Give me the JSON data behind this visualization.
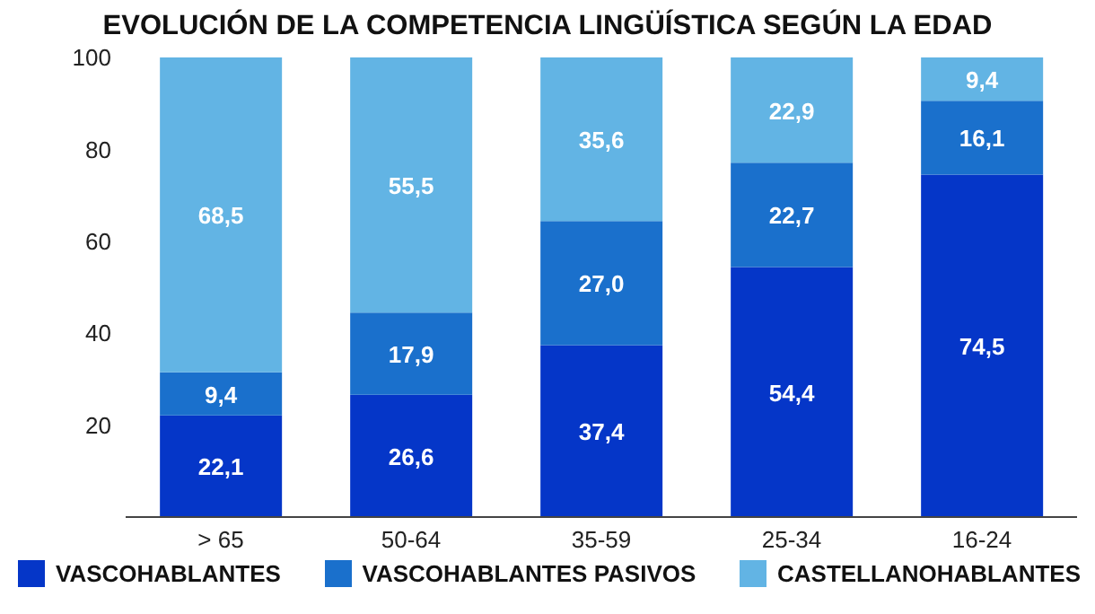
{
  "chart_data": {
    "type": "bar",
    "title": "EVOLUCIÓN DE LA COMPETENCIA LINGÜÍSTICA SEGÚN LA EDAD",
    "stacked": true,
    "categories": [
      "> 65",
      "50-64",
      "35-59",
      "25-34",
      "16-24"
    ],
    "series": [
      {
        "name": "VASCOHABLANTES",
        "color": "#0536c8",
        "values": [
          22.1,
          26.6,
          37.4,
          54.4,
          74.5
        ],
        "value_labels": [
          "22,1",
          "26,6",
          "37,4",
          "54,4",
          "74,5"
        ]
      },
      {
        "name": "VASCOHABLANTES PASIVOS",
        "color": "#1a70cc",
        "values": [
          9.4,
          17.9,
          27.0,
          22.7,
          16.1
        ],
        "value_labels": [
          "9,4",
          "17,9",
          "27,0",
          "22,7",
          "16,1"
        ]
      },
      {
        "name": "CASTELLANOHABLANTES",
        "color": "#62b4e4",
        "values": [
          68.5,
          55.5,
          35.6,
          22.9,
          9.4
        ],
        "value_labels": [
          "68,5",
          "55,5",
          "35,6",
          "22,9",
          "9,4"
        ]
      }
    ],
    "ylim": [
      0,
      100
    ],
    "yticks": [
      20,
      40,
      60,
      80,
      100
    ],
    "grid": false,
    "legend": "bottom"
  }
}
